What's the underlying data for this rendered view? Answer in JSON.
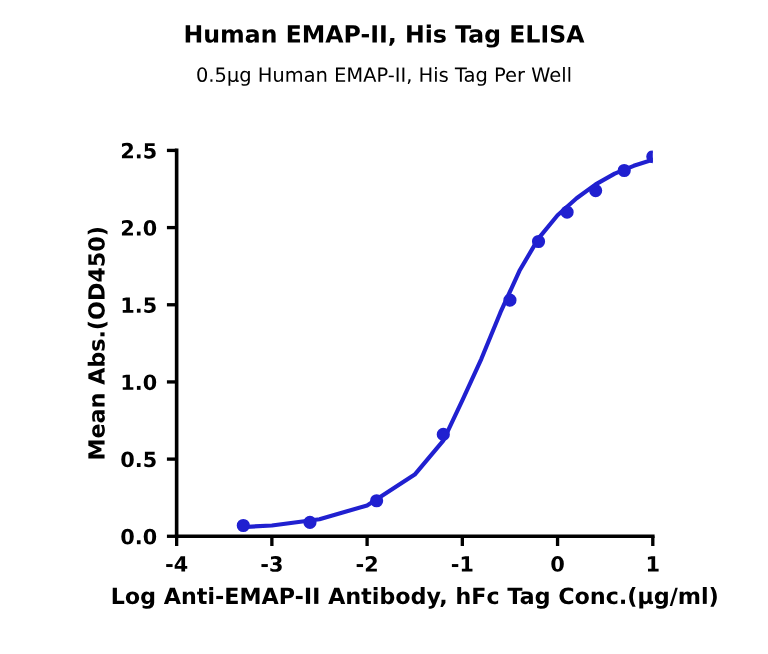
{
  "chart_data": {
    "type": "scatter",
    "title": "Human EMAP-II, His Tag ELISA",
    "subtitle": "0.5μg Human EMAP-II, His Tag Per Well",
    "xlabel": "Log Anti-EMAP-II Antibody, hFc Tag Conc.(μg/ml)",
    "ylabel": "Mean Abs.(OD450)",
    "series": [
      {
        "color": "#2020d0",
        "marker": "circle",
        "x": [
          -3.3,
          -2.6,
          -1.9,
          -1.2,
          -0.5,
          -0.2,
          0.1,
          0.4,
          0.7,
          1.0
        ],
        "values": [
          0.07,
          0.09,
          0.23,
          0.66,
          1.53,
          1.91,
          2.1,
          2.24,
          2.37,
          2.46
        ]
      },
      {
        "type": "line",
        "color": "#2020d0",
        "marker": "none",
        "line_style": "solid",
        "x": [
          -3.3,
          -3.0,
          -2.5,
          -2.0,
          -1.5,
          -1.2,
          -1.0,
          -0.8,
          -0.6,
          -0.4,
          -0.2,
          0.0,
          0.2,
          0.4,
          0.6,
          0.8,
          1.0
        ],
        "values": [
          0.06,
          0.07,
          0.11,
          0.2,
          0.4,
          0.62,
          0.88,
          1.15,
          1.45,
          1.72,
          1.93,
          2.08,
          2.19,
          2.28,
          2.35,
          2.4,
          2.44
        ]
      }
    ],
    "xlim": [
      -4,
      1
    ],
    "xticks": [
      -4,
      -3,
      -2,
      -1,
      0,
      1
    ],
    "ylim": [
      0,
      2.5
    ],
    "yticks": [
      {
        "value": 0,
        "label": "0.0"
      },
      0.5,
      {
        "value": 1,
        "label": "1.0"
      },
      1.5,
      {
        "value": 2,
        "label": "2.0"
      },
      2.5
    ],
    "grid": false,
    "legend": false
  }
}
